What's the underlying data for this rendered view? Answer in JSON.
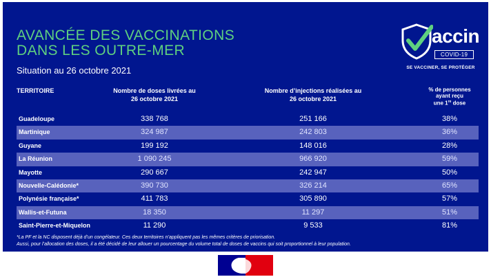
{
  "header": {
    "title": "AVANCÉE DES VACCINATIONS\nDANS LES OUTRE-MER",
    "subtitle": "Situation au 26 octobre 2021"
  },
  "logo": {
    "word": "accin",
    "covid": "COVID-19",
    "tagline": "SE VACCINER, SE PROTÉGER"
  },
  "table": {
    "headers": {
      "territory": "TERRITOIRE",
      "doses": "Nombre de doses livrées au\n26 octobre 2021",
      "injections": "Nombre d’injections réalisées au\n26 octobre 2021",
      "percent_line1": "% de personnes",
      "percent_line2": "ayant reçu",
      "percent_line3": "une 1",
      "percent_sup": "re",
      "percent_line3b": " dose"
    },
    "rows": [
      {
        "territory": "Guadeloupe",
        "doses": "338 768",
        "injections": "251 166",
        "percent": "38%"
      },
      {
        "territory": "Martinique",
        "doses": "324 987",
        "injections": "242 803",
        "percent": "36%"
      },
      {
        "territory": "Guyane",
        "doses": "199 192",
        "injections": "148 016",
        "percent": "28%"
      },
      {
        "territory": "La Réunion",
        "doses": "1 090 245",
        "injections": "966 920",
        "percent": "59%"
      },
      {
        "territory": "Mayotte",
        "doses": "290 667",
        "injections": "242 947",
        "percent": "50%"
      },
      {
        "territory": "Nouvelle-Calédonie*",
        "doses": "390 730",
        "injections": "326 214",
        "percent": "65%"
      },
      {
        "territory": "Polynésie française*",
        "doses": "411 783",
        "injections": "305 890",
        "percent": "57%"
      },
      {
        "territory": "Wallis-et-Futuna",
        "doses": "18 350",
        "injections": "11 297",
        "percent": "51%"
      },
      {
        "territory": "Saint-Pierre-et-Miquelon",
        "doses": "11 290",
        "injections": "9 533",
        "percent": "81%"
      }
    ]
  },
  "footnote": {
    "line1": "*La PF et la NC disposent déjà d’un congélateur. Ces deux territoires n’appliquent pas les mêmes critères de priorisation.",
    "line2": "Aussi, pour l’allocation des doses, il a été décidé de leur allouer un pourcentage du volume total de doses de vaccins qui soit proportionnel à leur population."
  },
  "colors": {
    "background": "#01168f",
    "title": "#5fd07f",
    "row_alt": "#5862bd",
    "flag_blue": "#000091",
    "flag_red": "#e1000f"
  }
}
